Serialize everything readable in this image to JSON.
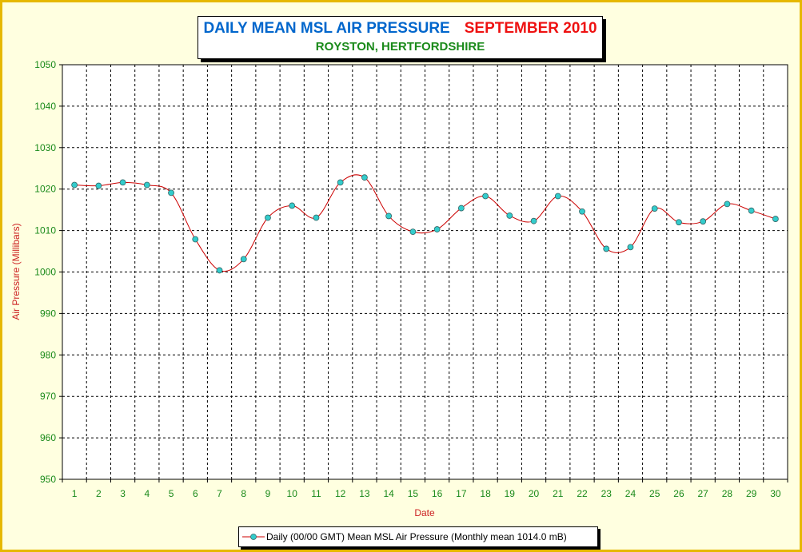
{
  "chart_data": {
    "type": "line",
    "title": "DAILY MEAN MSL AIR PRESSURE",
    "title_period": "SEPTEMBER 2010",
    "subtitle": "ROYSTON, HERTFORDSHIRE",
    "xlabel": "Date",
    "ylabel": "Air Pressure (Millibars)",
    "ylim": [
      950,
      1050
    ],
    "y_ticks": [
      950,
      960,
      970,
      980,
      990,
      1000,
      1010,
      1020,
      1030,
      1040,
      1050
    ],
    "x": [
      1,
      2,
      3,
      4,
      5,
      6,
      7,
      8,
      9,
      10,
      11,
      12,
      13,
      14,
      15,
      16,
      17,
      18,
      19,
      20,
      21,
      22,
      23,
      24,
      25,
      26,
      27,
      28,
      29,
      30
    ],
    "series": [
      {
        "name": "Daily (00/00 GMT) Mean MSL Air Pressure (Monthly mean 1014.0 mB)",
        "values": [
          1021.0,
          1020.8,
          1021.6,
          1021.0,
          1019.1,
          1007.9,
          1000.4,
          1003.1,
          1013.1,
          1016.0,
          1013.1,
          1021.6,
          1022.8,
          1013.5,
          1009.7,
          1010.3,
          1015.4,
          1018.3,
          1013.6,
          1012.3,
          1018.3,
          1014.6,
          1005.6,
          1006.0,
          1015.3,
          1012.0,
          1012.2,
          1016.4,
          1014.8,
          1012.8
        ]
      }
    ],
    "grid": true,
    "legend_position": "bottom-center",
    "colors": {
      "line": "#cc0000",
      "marker_fill": "#33cccc",
      "grid": "#000000",
      "plot_bg": "#ffffff",
      "frame_bg": "#ffffe0"
    }
  }
}
